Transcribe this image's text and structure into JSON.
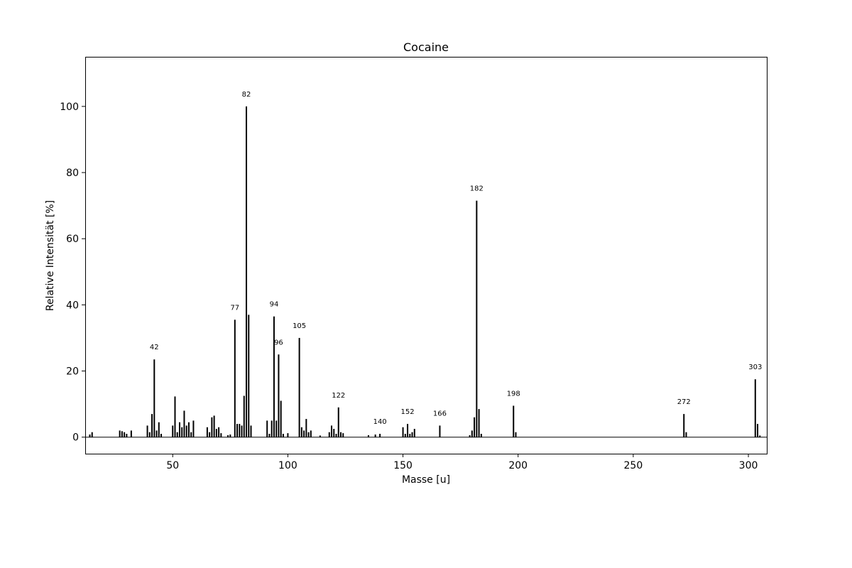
{
  "chart_data": {
    "type": "bar",
    "title": "Cocaine",
    "xlabel": "Masse [u]",
    "ylabel": "Relative Intensität [%]",
    "xlim": [
      12,
      308
    ],
    "ylim": [
      -5,
      115
    ],
    "xticks": [
      50,
      100,
      150,
      200,
      250,
      300
    ],
    "yticks": [
      0,
      20,
      40,
      60,
      80,
      100
    ],
    "grid": false,
    "x": [
      14,
      15,
      27,
      28,
      29,
      30,
      32,
      39,
      40,
      41,
      42,
      43,
      44,
      45,
      50,
      51,
      52,
      53,
      54,
      55,
      56,
      57,
      58,
      59,
      65,
      66,
      67,
      68,
      69,
      70,
      71,
      74,
      75,
      77,
      78,
      79,
      80,
      81,
      82,
      83,
      84,
      91,
      92,
      93,
      94,
      95,
      96,
      97,
      98,
      100,
      105,
      106,
      107,
      108,
      109,
      110,
      114,
      118,
      119,
      120,
      121,
      122,
      123,
      124,
      135,
      138,
      140,
      150,
      151,
      152,
      153,
      154,
      155,
      166,
      179,
      180,
      181,
      182,
      183,
      184,
      198,
      199,
      272,
      273,
      303,
      304,
      305
    ],
    "values": [
      0.8,
      1.5,
      2.0,
      1.8,
      1.5,
      1.0,
      2.0,
      3.5,
      1.5,
      7.0,
      23.5,
      2.0,
      4.5,
      1.0,
      3.5,
      12.3,
      1.5,
      4.5,
      3.0,
      8.0,
      3.5,
      4.5,
      1.5,
      5.0,
      3.0,
      1.5,
      6.0,
      6.5,
      2.5,
      3.0,
      1.2,
      0.6,
      0.8,
      35.5,
      4.0,
      4.0,
      3.5,
      12.5,
      100.0,
      37.0,
      3.5,
      5.0,
      1.0,
      5.0,
      36.5,
      5.0,
      25.0,
      11.0,
      1.0,
      1.2,
      30.0,
      3.0,
      2.0,
      5.5,
      1.5,
      2.0,
      0.5,
      1.5,
      3.5,
      2.5,
      1.0,
      9.0,
      1.5,
      1.2,
      0.6,
      0.8,
      1.0,
      3.0,
      1.0,
      4.0,
      1.0,
      1.5,
      2.5,
      3.5,
      0.6,
      2.0,
      6.0,
      71.5,
      8.5,
      1.0,
      9.5,
      1.5,
      7.0,
      1.5,
      17.5,
      4.0,
      0.5
    ],
    "annotations": [
      {
        "x": 42,
        "label": "42"
      },
      {
        "x": 77,
        "label": "77"
      },
      {
        "x": 82,
        "label": "82"
      },
      {
        "x": 94,
        "label": "94"
      },
      {
        "x": 96,
        "label": "96"
      },
      {
        "x": 105,
        "label": "105"
      },
      {
        "x": 122,
        "label": "122"
      },
      {
        "x": 140,
        "label": "140"
      },
      {
        "x": 152,
        "label": "152"
      },
      {
        "x": 166,
        "label": "166"
      },
      {
        "x": 182,
        "label": "182"
      },
      {
        "x": 198,
        "label": "198"
      },
      {
        "x": 272,
        "label": "272"
      },
      {
        "x": 303,
        "label": "303"
      }
    ],
    "colors": {
      "bars": "#000000",
      "axes": "#000000",
      "background": "#ffffff"
    }
  }
}
